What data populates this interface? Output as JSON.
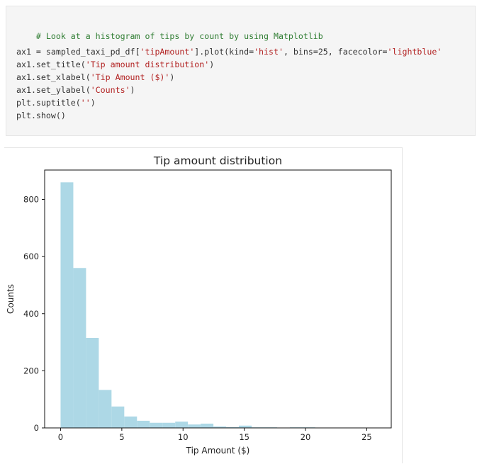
{
  "code_cell": {
    "comment": "# Look at a histogram of tips by count by using Matplotlib",
    "line1_a": "ax1 = sampled_taxi_pd_df[",
    "line1_b": "'tipAmount'",
    "line1_c": "].plot(kind=",
    "line1_d": "'hist'",
    "line1_e": ", bins=25, facecolor=",
    "line1_f": "'lightblue'",
    "line2_a": "ax1.set_title(",
    "line2_b": "'Tip amount distribution'",
    "line2_c": ")",
    "line3_a": "ax1.set_xlabel(",
    "line3_b": "'Tip Amount ($)'",
    "line3_c": ")",
    "line4_a": "ax1.set_ylabel(",
    "line4_b": "'Counts'",
    "line4_c": ")",
    "line5_a": "plt.suptitle(",
    "line5_b": "''",
    "line5_c": ")",
    "line6": "plt.show()"
  },
  "chart_data": {
    "type": "bar",
    "title": "Tip amount distribution",
    "xlabel": "Tip Amount ($)",
    "ylabel": "Counts",
    "bar_color": "#add8e6",
    "bin_width": 1.04,
    "bin_starts": [
      0,
      1.04,
      2.08,
      3.12,
      4.16,
      5.2,
      6.24,
      7.28,
      8.32,
      9.36,
      10.4,
      11.44,
      12.48,
      13.52,
      14.56,
      15.6,
      16.64,
      17.68,
      18.72,
      19.76,
      20.8,
      21.84,
      22.88,
      23.92,
      24.96
    ],
    "values": [
      860,
      560,
      315,
      133,
      75,
      40,
      25,
      18,
      18,
      22,
      12,
      15,
      5,
      3,
      8,
      2,
      2,
      1,
      2,
      2,
      1,
      0,
      1,
      1,
      1
    ],
    "xlim": [
      -1.3,
      27
    ],
    "ylim": [
      0,
      903
    ],
    "xticks": [
      0,
      5,
      10,
      15,
      20,
      25
    ],
    "yticks": [
      0,
      200,
      400,
      600,
      800
    ],
    "grid": false,
    "legend": "none"
  }
}
